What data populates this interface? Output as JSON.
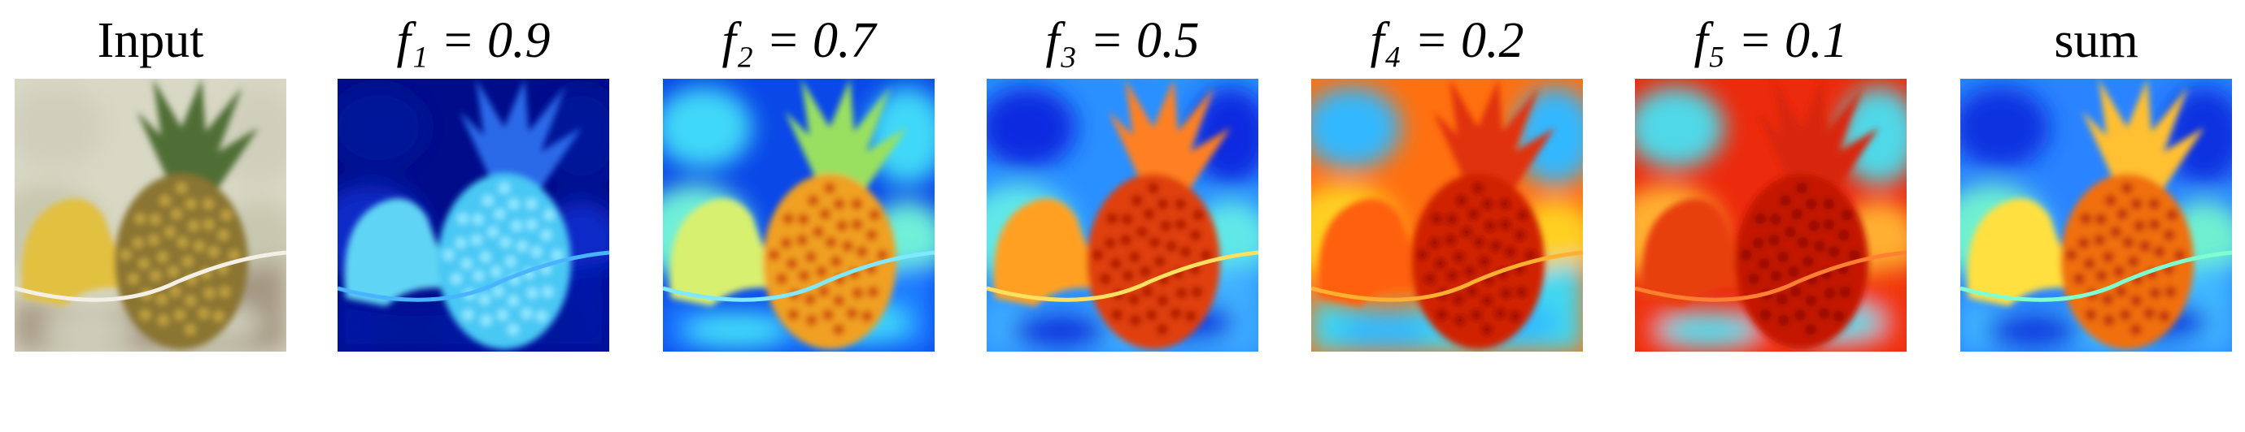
{
  "panels": [
    {
      "title": "Input"
    },
    {
      "title": "f₁ = 0.9"
    },
    {
      "title": "f₂ = 0.7"
    },
    {
      "title": "f₃ = 0.5"
    },
    {
      "title": "f₄ = 0.2"
    },
    {
      "title": "f₅ = 0.1"
    },
    {
      "title": "sum"
    }
  ]
}
